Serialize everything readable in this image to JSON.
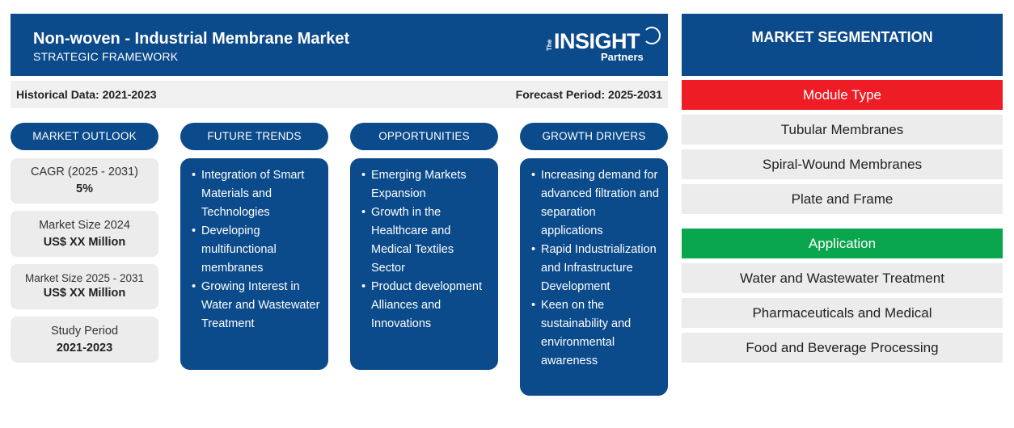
{
  "header": {
    "title": "Non-woven - Industrial Membrane Market",
    "subtitle": "STRATEGIC FRAMEWORK",
    "logo": {
      "the": "The",
      "insight": "INSIGHT",
      "partners": "Partners"
    }
  },
  "periods": {
    "historical": "Historical Data: 2021-2023",
    "forecast": "Forecast Period: 2025-2031"
  },
  "columns": {
    "outlook": "MARKET OUTLOOK",
    "trends": "FUTURE TRENDS",
    "opportunities": "OPPORTUNITIES",
    "drivers": "GROWTH DRIVERS"
  },
  "outlook": [
    {
      "label": "CAGR (2025 - 2031)",
      "value": "5%"
    },
    {
      "label": "Market Size 2024",
      "value": "US$ XX Million"
    },
    {
      "label": "Market Size 2025 - 2031",
      "value": "US$ XX Million"
    },
    {
      "label": "Study Period",
      "value": "2021-2023"
    }
  ],
  "trends": [
    "Integration of Smart Materials and Technologies",
    "Developing multifunctional membranes",
    "Growing Interest in Water and Wastewater Treatment"
  ],
  "opportunities": [
    "Emerging Markets Expansion",
    "Growth in the Healthcare and Medical Textiles Sector",
    "Product development Alliances and Innovations"
  ],
  "drivers": [
    "Increasing demand for advanced filtration and separation applications",
    "Rapid Industrialization and Infrastructure Development",
    "Keen on the sustainability and environmental awareness"
  ],
  "segmentation": {
    "title": "MARKET SEGMENTATION",
    "module_type": {
      "label": "Module Type",
      "color": "#ee1c25",
      "items": [
        "Tubular Membranes",
        "Spiral-Wound Membranes",
        "Plate and Frame"
      ]
    },
    "application": {
      "label": "Application",
      "color": "#0aa64e",
      "items": [
        "Water and Wastewater Treatment",
        "Pharmaceuticals and Medical",
        "Food and Beverage Processing"
      ]
    }
  }
}
